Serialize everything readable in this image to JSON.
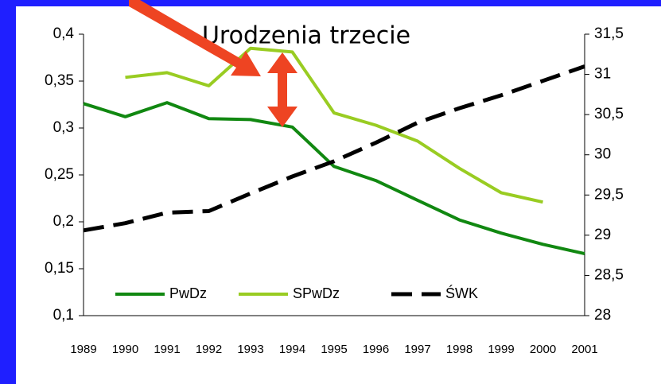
{
  "chart_data": {
    "type": "line",
    "title": "Urodzenia trzecie",
    "categories": [
      "1989",
      "1990",
      "1991",
      "1992",
      "1993",
      "1994",
      "1995",
      "1996",
      "1997",
      "1998",
      "1999",
      "2000",
      "2001"
    ],
    "series": [
      {
        "name": "PwDz",
        "color": "#118811",
        "values": [
          0.326,
          0.312,
          0.327,
          0.31,
          0.309,
          0.301,
          0.259,
          0.244,
          0.223,
          0.202,
          0.188,
          0.176,
          0.166
        ]
      },
      {
        "name": "SPwDz",
        "color": "#99cc22",
        "values": [
          null,
          0.354,
          0.359,
          0.345,
          0.385,
          0.381,
          0.316,
          0.303,
          0.286,
          0.257,
          0.231,
          0.221,
          null
        ]
      },
      {
        "name": "ŚWK",
        "color": "#000000",
        "dashed": true,
        "axis": "y2",
        "values": [
          29.06,
          29.15,
          29.28,
          29.3,
          29.52,
          29.73,
          29.92,
          30.15,
          30.4,
          30.58,
          30.74,
          30.92,
          31.1
        ]
      }
    ],
    "ylim": [
      0.1,
      0.4
    ],
    "yticks": [
      {
        "value": 0.1,
        "label": "0,1"
      },
      {
        "value": 0.15,
        "label": "0,15"
      },
      {
        "value": 0.2,
        "label": "0,2"
      },
      {
        "value": 0.25,
        "label": "0,25"
      },
      {
        "value": 0.3,
        "label": "0,3"
      },
      {
        "value": 0.35,
        "label": "0,35"
      },
      {
        "value": 0.4,
        "label": "0,4"
      }
    ],
    "y2lim": [
      28,
      31.5
    ],
    "y2ticks": [
      28,
      {
        "value": 28.5,
        "label": "28,5"
      },
      29,
      {
        "value": 29.5,
        "label": "29,5"
      },
      30,
      {
        "value": 30.5,
        "label": "30,5"
      },
      31,
      {
        "value": 31.5,
        "label": "31,5"
      }
    ]
  }
}
